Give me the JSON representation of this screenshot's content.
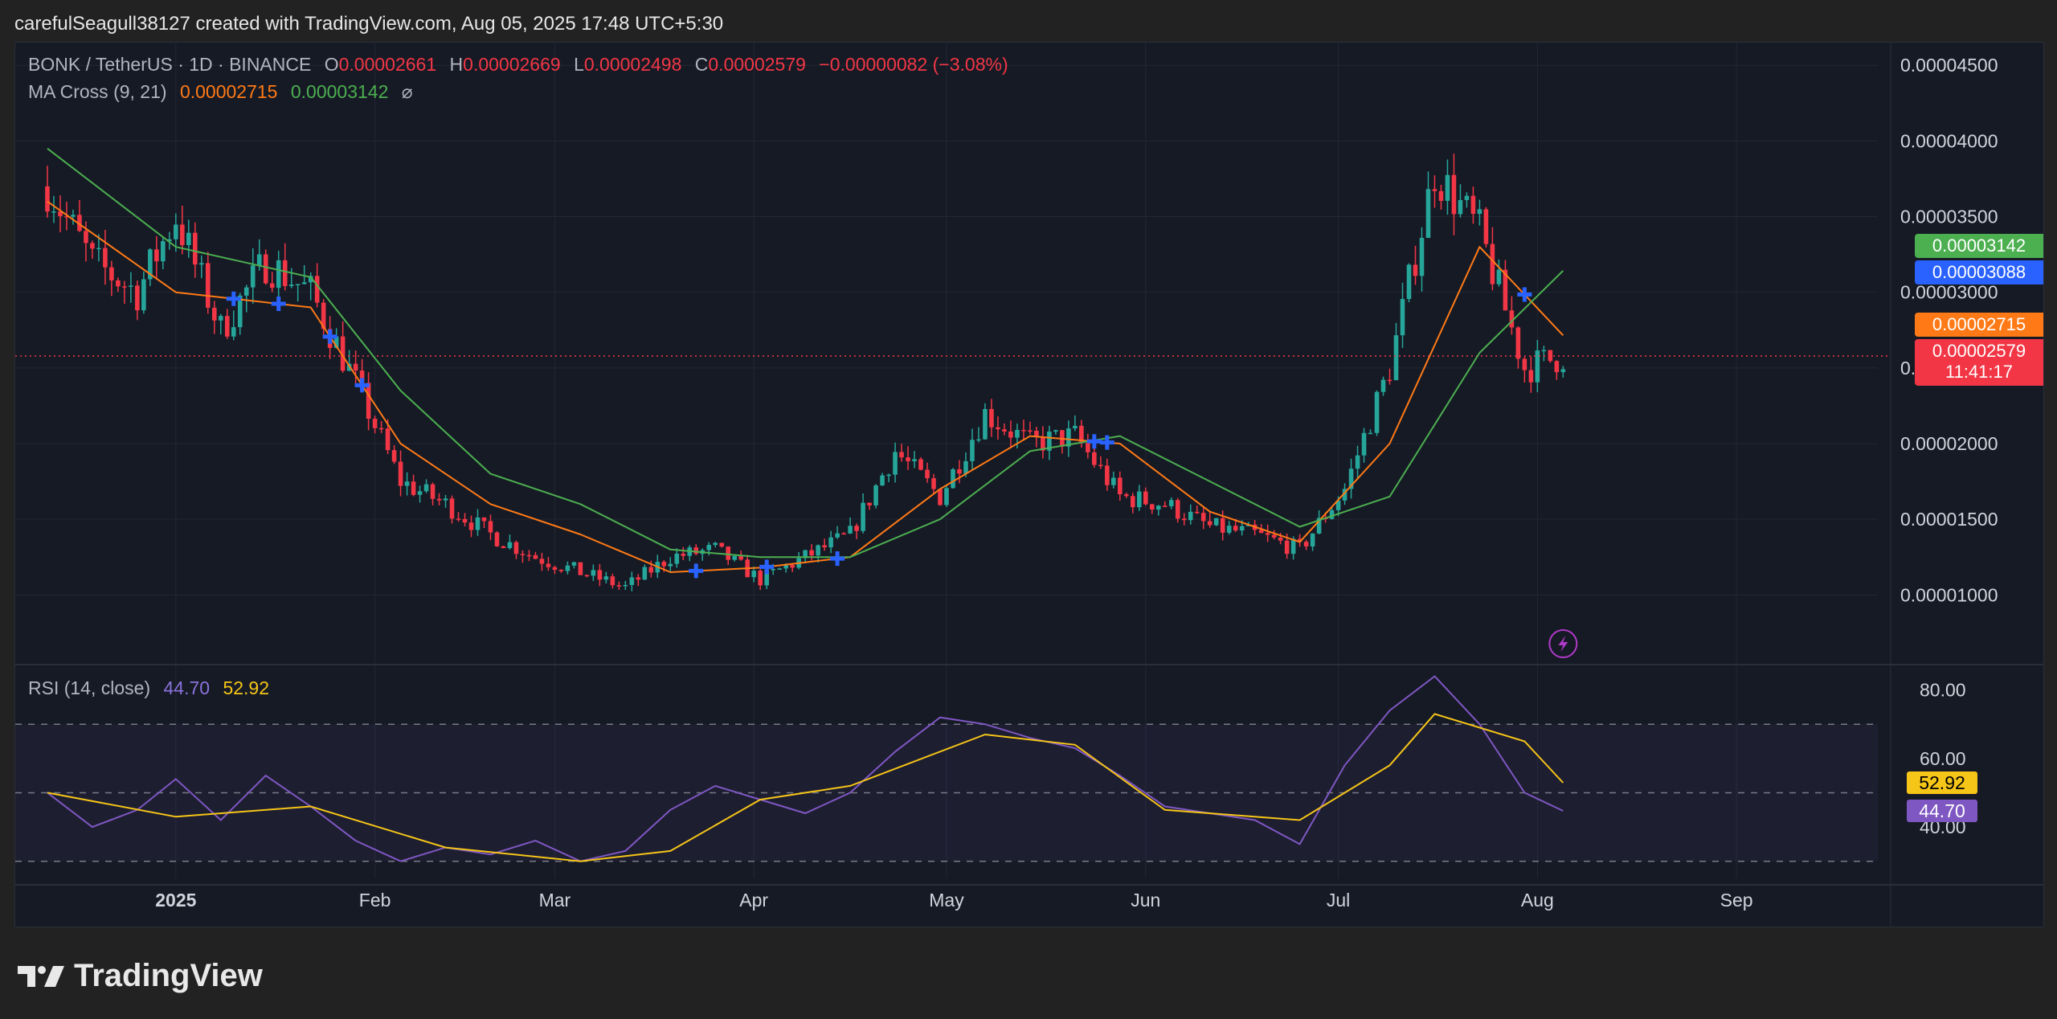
{
  "attribution": "carefulSeagull38127 created with TradingView.com, Aug 05, 2025 17:48 UTC+5:30",
  "brand": "TradingView",
  "symbol": {
    "title": "BONK / TetherUS · 1D · BINANCE",
    "open_key": "O",
    "open": "0.00002661",
    "high_key": "H",
    "high": "0.00002669",
    "low_key": "L",
    "low": "0.00002498",
    "close_key": "C",
    "close": "0.00002579",
    "change": "−0.00000082 (−3.08%)"
  },
  "ma_cross": {
    "label": "MA Cross (9, 21)",
    "fast": "0.00002715",
    "slow": "0.00003142",
    "icon": "eye-slash-icon"
  },
  "rsi": {
    "label": "RSI (14, close)",
    "value": "44.70",
    "ma": "52.92"
  },
  "price_badges": {
    "slow_ma": "0.00003142",
    "cross": "0.00003088",
    "fast_ma": "0.00002715",
    "last": "0.00002579",
    "countdown": "11:41:17"
  },
  "colors": {
    "up": "#26a69a",
    "down": "#f23645",
    "fast_ma": "#ff7a16",
    "slow_ma": "#4caf50",
    "rsi": "#7e57c2",
    "rsi_ma": "#f5c518",
    "cross": "#2962ff"
  },
  "chart_data": [
    {
      "type": "candlestick",
      "title": "BONK / TetherUS · 1D · BINANCE",
      "y_ticks": [
        "0.00004500",
        "0.00004000",
        "0.00003500",
        "0.00003000",
        "0.00002500",
        "0.00002000",
        "0.00001500",
        "0.00001000"
      ],
      "ylim": [
        5.5e-06,
        4.65e-05
      ],
      "x_ticks": [
        "2025",
        "Feb",
        "Mar",
        "Apr",
        "May",
        "Jun",
        "Jul",
        "Aug",
        "Sep"
      ],
      "last_price": 2.579e-05,
      "close_series": {
        "dates": [
          "2024-12-12",
          "2024-12-19",
          "2024-12-26",
          "2025-01-01",
          "2025-01-08",
          "2025-01-15",
          "2025-01-22",
          "2025-01-29",
          "2025-02-05",
          "2025-02-12",
          "2025-02-19",
          "2025-02-26",
          "2025-03-05",
          "2025-03-12",
          "2025-03-19",
          "2025-03-26",
          "2025-04-02",
          "2025-04-09",
          "2025-04-16",
          "2025-04-23",
          "2025-04-30",
          "2025-05-07",
          "2025-05-14",
          "2025-05-21",
          "2025-05-28",
          "2025-06-04",
          "2025-06-11",
          "2025-06-18",
          "2025-06-25",
          "2025-07-02",
          "2025-07-09",
          "2025-07-16",
          "2025-07-23",
          "2025-07-30",
          "2025-08-05"
        ],
        "values": [
          3.7e-05,
          3.2e-05,
          3e-05,
          3.5e-05,
          2.75e-05,
          3.2e-05,
          3e-05,
          2.4e-05,
          1.75e-05,
          1.6e-05,
          1.4e-05,
          1.25e-05,
          1.15e-05,
          1.05e-05,
          1.25e-05,
          1.3e-05,
          1.1e-05,
          1.25e-05,
          1.4e-05,
          1.95e-05,
          1.65e-05,
          2.2e-05,
          2e-05,
          2.05e-05,
          1.65e-05,
          1.6e-05,
          1.45e-05,
          1.4e-05,
          1.3e-05,
          1.7e-05,
          2.5e-05,
          3.8e-05,
          3.4e-05,
          2.5e-05,
          2.58e-05
        ]
      },
      "series": [
        {
          "name": "MA 9",
          "dates": [
            "2024-12-12",
            "2025-01-01",
            "2025-01-22",
            "2025-02-05",
            "2025-02-19",
            "2025-03-05",
            "2025-03-19",
            "2025-04-02",
            "2025-04-16",
            "2025-04-30",
            "2025-05-14",
            "2025-05-28",
            "2025-06-11",
            "2025-06-25",
            "2025-07-09",
            "2025-07-23",
            "2025-08-05"
          ],
          "values": [
            3.6e-05,
            3e-05,
            2.9e-05,
            2e-05,
            1.6e-05,
            1.4e-05,
            1.15e-05,
            1.18e-05,
            1.25e-05,
            1.7e-05,
            2.05e-05,
            2e-05,
            1.55e-05,
            1.35e-05,
            2e-05,
            3.3e-05,
            2.715e-05
          ]
        },
        {
          "name": "MA 21",
          "dates": [
            "2024-12-12",
            "2025-01-01",
            "2025-01-22",
            "2025-02-05",
            "2025-02-19",
            "2025-03-05",
            "2025-03-19",
            "2025-04-02",
            "2025-04-16",
            "2025-04-30",
            "2025-05-14",
            "2025-05-28",
            "2025-06-11",
            "2025-06-25",
            "2025-07-09",
            "2025-07-23",
            "2025-08-05"
          ],
          "values": [
            3.95e-05,
            3.3e-05,
            3.1e-05,
            2.35e-05,
            1.8e-05,
            1.6e-05,
            1.3e-05,
            1.25e-05,
            1.25e-05,
            1.5e-05,
            1.95e-05,
            2.05e-05,
            1.75e-05,
            1.45e-05,
            1.65e-05,
            2.6e-05,
            3.142e-05
          ]
        }
      ],
      "cross_markers": [
        "2025-01-10",
        "2025-01-17",
        "2025-01-25",
        "2025-01-30",
        "2025-03-23",
        "2025-04-03",
        "2025-04-14",
        "2025-05-24",
        "2025-05-26",
        "2025-07-30"
      ]
    },
    {
      "type": "line",
      "title": "RSI (14, close)",
      "y_ticks": [
        "80.00",
        "60.00",
        "40.00"
      ],
      "ylim": [
        25,
        86
      ],
      "bands": [
        70,
        50,
        30
      ],
      "series": [
        {
          "name": "RSI",
          "dates": [
            "2024-12-12",
            "2024-12-19",
            "2024-12-26",
            "2025-01-01",
            "2025-01-08",
            "2025-01-15",
            "2025-01-22",
            "2025-01-29",
            "2025-02-05",
            "2025-02-12",
            "2025-02-19",
            "2025-02-26",
            "2025-03-05",
            "2025-03-12",
            "2025-03-19",
            "2025-03-26",
            "2025-04-02",
            "2025-04-09",
            "2025-04-16",
            "2025-04-23",
            "2025-04-30",
            "2025-05-07",
            "2025-05-14",
            "2025-05-21",
            "2025-05-28",
            "2025-06-04",
            "2025-06-11",
            "2025-06-18",
            "2025-06-25",
            "2025-07-02",
            "2025-07-09",
            "2025-07-16",
            "2025-07-23",
            "2025-07-30",
            "2025-08-05"
          ],
          "values": [
            50,
            40,
            45,
            54,
            42,
            55,
            46,
            36,
            30,
            34,
            32,
            36,
            30,
            33,
            45,
            52,
            48,
            44,
            50,
            62,
            72,
            70,
            66,
            63,
            55,
            46,
            44,
            42,
            35,
            58,
            74,
            84,
            70,
            50,
            44.7
          ]
        },
        {
          "name": "RSI MA",
          "dates": [
            "2024-12-12",
            "2025-01-01",
            "2025-01-22",
            "2025-02-12",
            "2025-03-05",
            "2025-03-19",
            "2025-04-02",
            "2025-04-16",
            "2025-05-07",
            "2025-05-21",
            "2025-06-04",
            "2025-06-25",
            "2025-07-09",
            "2025-07-16",
            "2025-07-30",
            "2025-08-05"
          ],
          "values": [
            50,
            43,
            46,
            34,
            30,
            33,
            48,
            52,
            67,
            64,
            45,
            42,
            58,
            73,
            65,
            52.92
          ]
        }
      ]
    }
  ]
}
